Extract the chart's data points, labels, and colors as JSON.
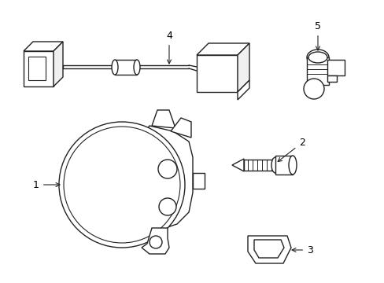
{
  "bg_color": "#ffffff",
  "line_color": "#222222",
  "lw": 1.0,
  "figsize": [
    4.89,
    3.6
  ],
  "dpi": 100
}
